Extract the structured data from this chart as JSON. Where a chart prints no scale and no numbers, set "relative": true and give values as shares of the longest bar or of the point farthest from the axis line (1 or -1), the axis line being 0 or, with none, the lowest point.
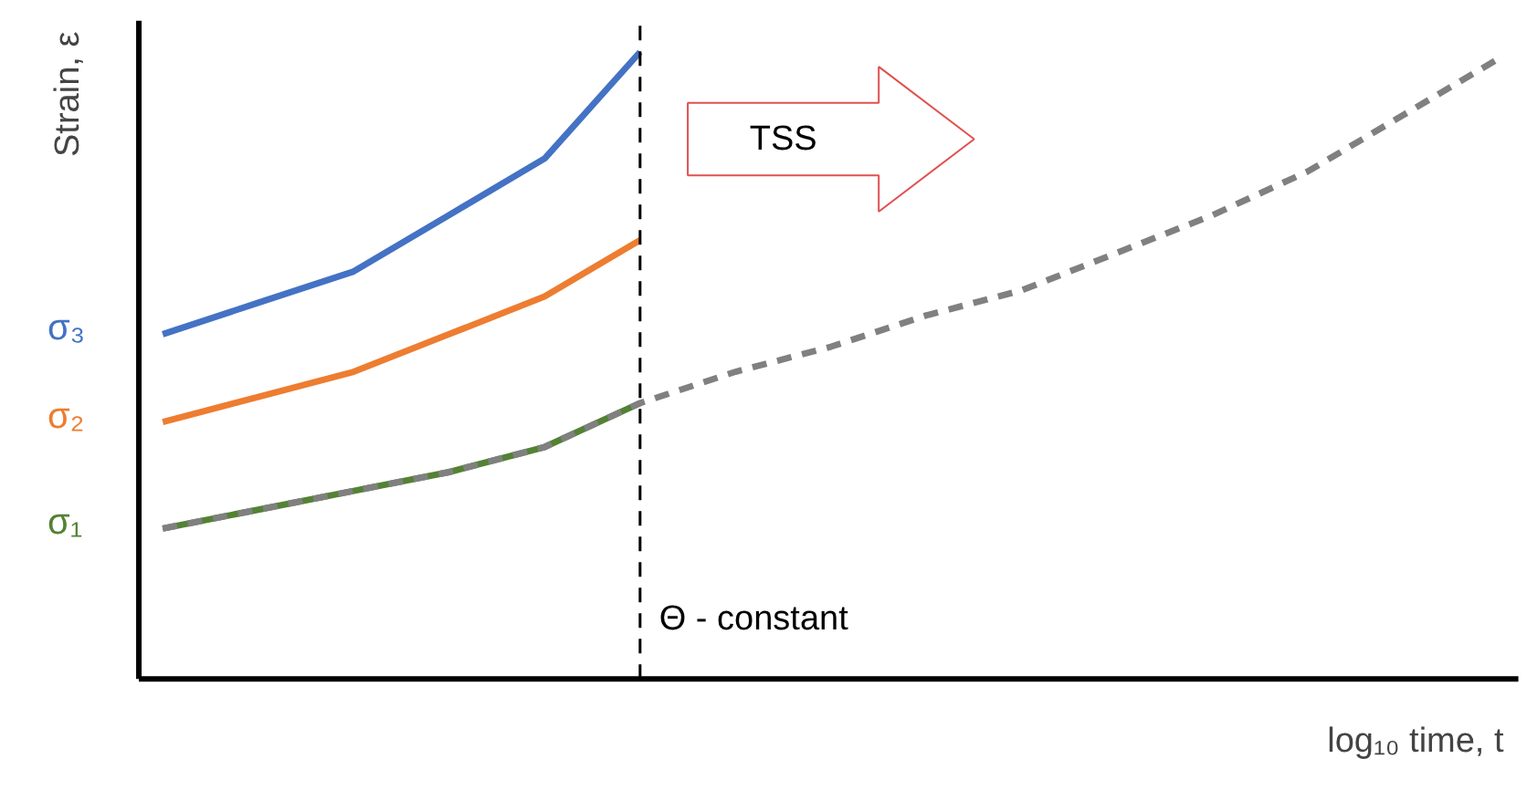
{
  "chart_data": {
    "type": "line",
    "relative": true,
    "xlabel": "log₁₀ time, t",
    "ylabel": "Strain, ε",
    "categories": [
      null,
      null,
      null,
      null,
      null,
      null,
      null,
      null,
      null,
      null,
      null,
      null,
      null,
      null,
      null
    ],
    "series": [
      {
        "name": "σ₃",
        "color": "#4472c4",
        "values": [
          0.55,
          0.6,
          0.65,
          0.74,
          0.83,
          1.0,
          null,
          null,
          null,
          null,
          null,
          null,
          null,
          null,
          null
        ]
      },
      {
        "name": "σ₂",
        "color": "#ed7d31",
        "values": [
          0.41,
          0.45,
          0.49,
          0.55,
          0.61,
          0.7,
          null,
          null,
          null,
          null,
          null,
          null,
          null,
          null,
          null
        ]
      },
      {
        "name": "σ₁",
        "color": "#548235",
        "values": [
          0.24,
          0.27,
          0.3,
          0.33,
          0.37,
          0.44,
          null,
          null,
          null,
          null,
          null,
          null,
          null,
          null,
          null
        ]
      },
      {
        "color": "#808080",
        "line_style": "dashed",
        "values": [
          0.24,
          0.27,
          0.3,
          0.33,
          0.37,
          0.44,
          0.49,
          0.53,
          0.58,
          0.62,
          0.68,
          0.74,
          0.81,
          0.9,
          0.99
        ]
      }
    ],
    "ref_lines": [
      {
        "axis": "x",
        "value": null,
        "color": "#000000",
        "line_style": "dashed"
      }
    ],
    "annotations": [
      "TSS",
      "Θ - constant"
    ]
  }
}
